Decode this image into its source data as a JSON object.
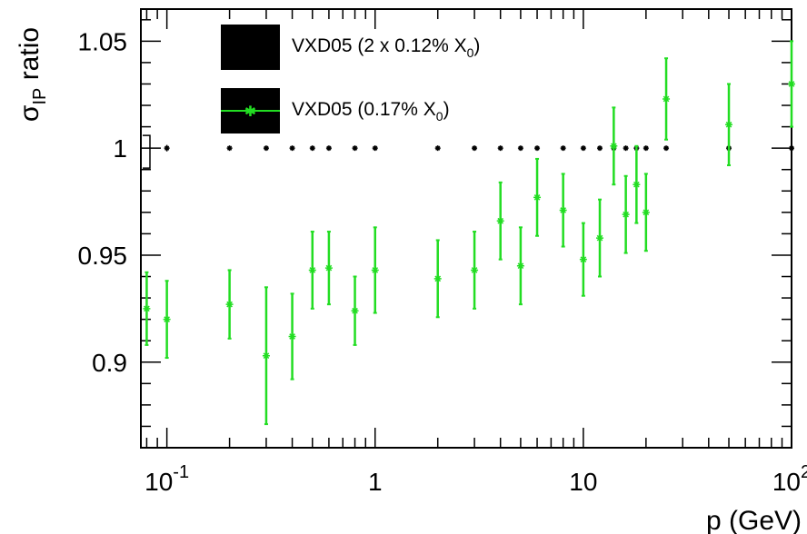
{
  "chart_data": {
    "type": "scatter",
    "title": "",
    "xlabel": "p (GeV)",
    "ylabel_main": "σ",
    "ylabel_sub": "IP",
    "ylabel_rest": " ratio",
    "xscale": "log",
    "xlim": [
      0.075,
      100
    ],
    "ylim": [
      0.86,
      1.065
    ],
    "grid": false,
    "legend_placement": "top-center",
    "x_ticks": [
      {
        "value": 0.1,
        "base": "10",
        "exp": "-1"
      },
      {
        "value": 1,
        "base": "1",
        "exp": ""
      },
      {
        "value": 10,
        "base": "10",
        "exp": ""
      },
      {
        "value": 100,
        "base": "10",
        "exp": "2"
      }
    ],
    "y_ticks": [
      {
        "value": 0.9,
        "label": "0.9"
      },
      {
        "value": 0.95,
        "label": "0.95"
      },
      {
        "value": 1.0,
        "label": "1"
      },
      {
        "value": 1.05,
        "label": "1.05"
      }
    ],
    "series": [
      {
        "name_main": "VXD05 (2 x 0.12% X",
        "name_sub": "0",
        "name_end": ")",
        "color": "#000000",
        "legend_style": "box",
        "marker": "star",
        "x": [
          0.1,
          0.2,
          0.3,
          0.4,
          0.5,
          0.6,
          0.8,
          1,
          2,
          3,
          4,
          5,
          6,
          8,
          10,
          12,
          14,
          16,
          18,
          20,
          25,
          50,
          100
        ],
        "y": [
          1,
          1,
          1,
          1,
          1,
          1,
          1,
          1,
          1,
          1,
          1,
          1,
          1,
          1,
          1,
          1,
          1,
          1,
          1,
          1,
          1,
          1,
          1
        ],
        "err": [
          0.0015,
          0.0006,
          0.0006,
          0.0006,
          0.0006,
          0.0006,
          0.0006,
          0.0006,
          0.0006,
          0.0006,
          0.0006,
          0.0006,
          0.0006,
          0.0006,
          0.0006,
          0.0006,
          0.0006,
          0.0006,
          0.0006,
          0.0006,
          0.0006,
          0.0006,
          0.0006
        ]
      },
      {
        "name_main": "VXD05 (0.17% X",
        "name_sub": "0",
        "name_end": ")",
        "color": "#22dd22",
        "legend_style": "line",
        "marker": "star",
        "x": [
          0.08,
          0.1,
          0.2,
          0.3,
          0.4,
          0.5,
          0.6,
          0.8,
          1,
          2,
          3,
          4,
          5,
          6,
          8,
          10,
          12,
          14,
          16,
          18,
          20,
          25,
          50,
          100
        ],
        "y": [
          0.925,
          0.92,
          0.927,
          0.903,
          0.912,
          0.943,
          0.944,
          0.924,
          0.943,
          0.939,
          0.943,
          0.966,
          0.945,
          0.977,
          0.971,
          0.948,
          0.958,
          1.001,
          0.969,
          0.983,
          0.97,
          1.023,
          1.011,
          1.03
        ],
        "err": [
          0.017,
          0.018,
          0.016,
          0.032,
          0.02,
          0.018,
          0.017,
          0.016,
          0.02,
          0.018,
          0.018,
          0.018,
          0.018,
          0.018,
          0.017,
          0.017,
          0.018,
          0.018,
          0.018,
          0.018,
          0.018,
          0.019,
          0.019,
          0.02
        ]
      }
    ]
  }
}
